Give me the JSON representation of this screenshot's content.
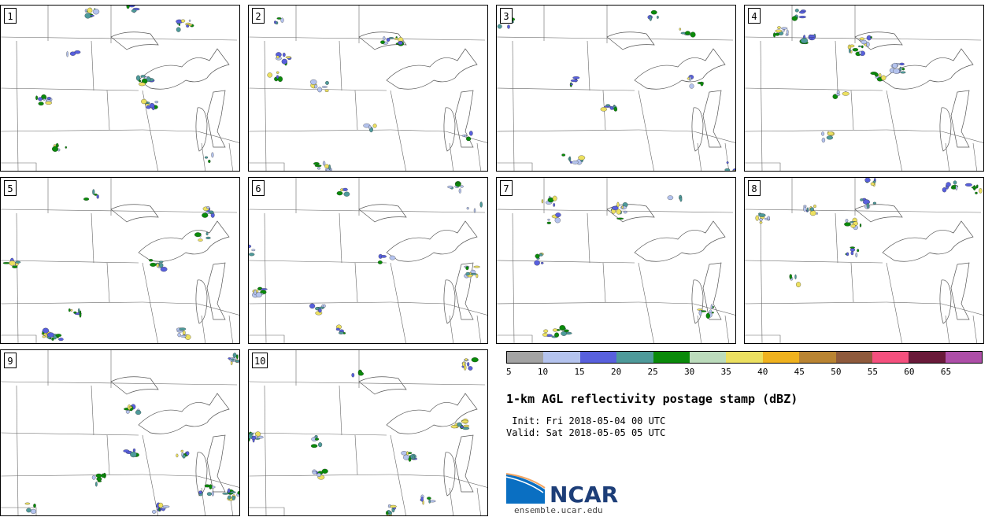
{
  "panels": [
    {
      "label": "1"
    },
    {
      "label": "2"
    },
    {
      "label": "3"
    },
    {
      "label": "4"
    },
    {
      "label": "5"
    },
    {
      "label": "6"
    },
    {
      "label": "7"
    },
    {
      "label": "8"
    },
    {
      "label": "9"
    },
    {
      "label": "10"
    }
  ],
  "colorbar": {
    "colors": [
      "#a3a3a3",
      "#b4c3ee",
      "#5860dd",
      "#4e9a9a",
      "#0a8a0a",
      "#bcdcbc",
      "#ece060",
      "#f0b21e",
      "#ba8432",
      "#8f5a3c",
      "#f5507e",
      "#6a1a3a",
      "#ae4ea8"
    ],
    "ticks": [
      "5",
      "10",
      "15",
      "20",
      "25",
      "30",
      "35",
      "40",
      "45",
      "50",
      "55",
      "60",
      "65"
    ]
  },
  "title": "1-km AGL reflectivity postage stamp (dBZ)",
  "init_text": " Init: Fri 2018-05-04 00 UTC",
  "valid_text": "Valid: Sat 2018-05-05 05 UTC",
  "logo": {
    "text": "NCAR",
    "url": "ensemble.ucar.edu"
  }
}
